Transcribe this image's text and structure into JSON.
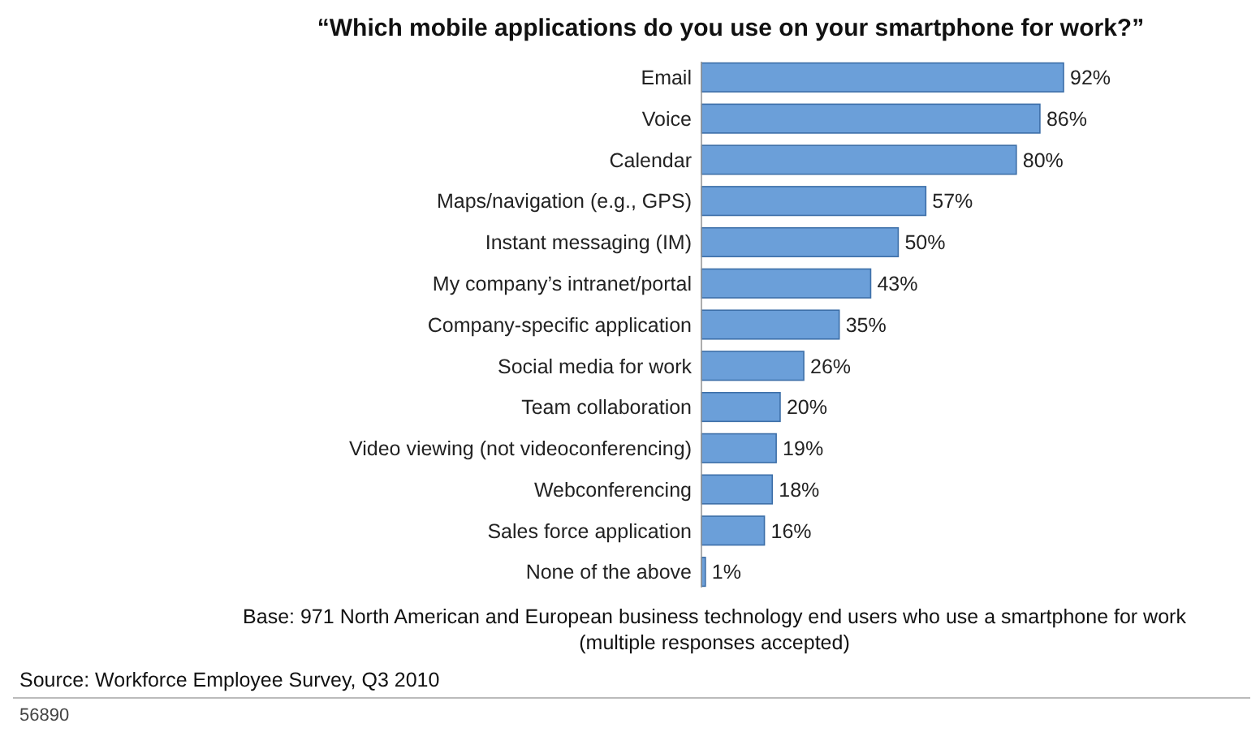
{
  "chart_data": {
    "type": "bar",
    "orientation": "horizontal",
    "title": "“Which mobile applications do you use on your smartphone for work?”",
    "categories": [
      "Email",
      "Voice",
      "Calendar",
      "Maps/navigation (e.g., GPS)",
      "Instant messaging (IM)",
      "My company’s intranet/portal",
      "Company-specific application",
      "Social media for work",
      "Team collaboration",
      "Video viewing (not videoconferencing)",
      "Webconferencing",
      "Sales force application",
      "None of the above"
    ],
    "values": [
      92,
      86,
      80,
      57,
      50,
      43,
      35,
      26,
      20,
      19,
      18,
      16,
      1
    ],
    "value_labels": [
      "92%",
      "86%",
      "80%",
      "57%",
      "50%",
      "43%",
      "35%",
      "26%",
      "20%",
      "19%",
      "18%",
      "16%",
      "1%"
    ],
    "color": "#6b9fd9",
    "annotations": [
      "Base: 971 North American and European business technology end users who use a smartphone for work",
      "(multiple responses accepted)",
      "Source: Workforce Employee Survey, Q3 2010",
      "56890"
    ]
  }
}
